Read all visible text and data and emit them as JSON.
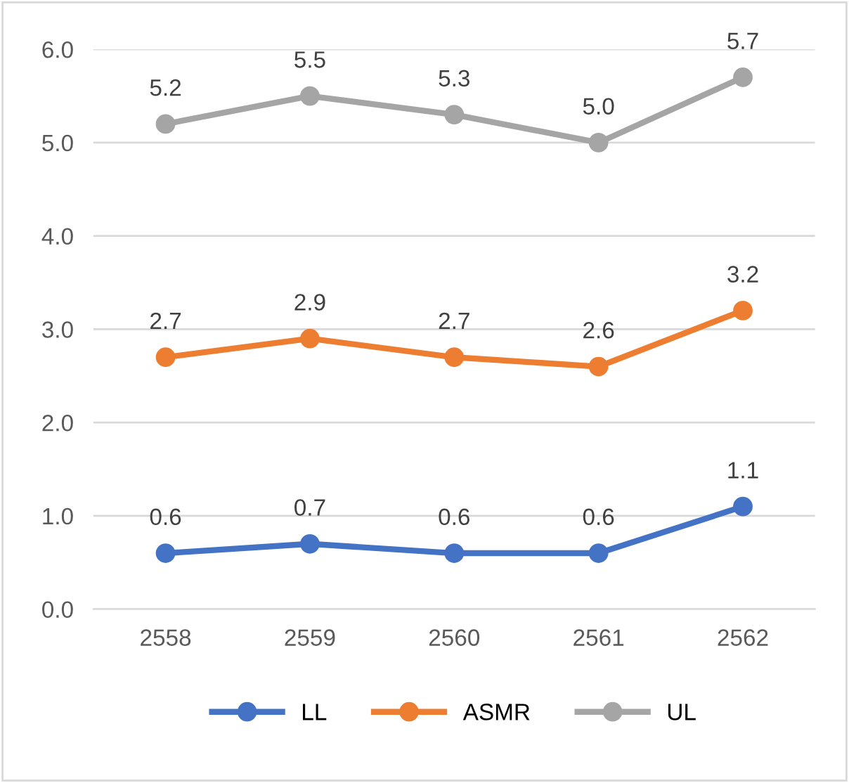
{
  "chart_data": {
    "type": "line",
    "categories": [
      "2558",
      "2559",
      "2560",
      "2561",
      "2562"
    ],
    "series": [
      {
        "name": "LL",
        "color": "#4472c4",
        "values": [
          0.6,
          0.7,
          0.6,
          0.6,
          1.1
        ],
        "value_labels": [
          "0.6",
          "0.7",
          "0.6",
          "0.6",
          "1.1"
        ]
      },
      {
        "name": "ASMR",
        "color": "#ed7d31",
        "values": [
          2.7,
          2.9,
          2.7,
          2.6,
          3.2
        ],
        "value_labels": [
          "2.7",
          "2.9",
          "2.7",
          "2.6",
          "3.2"
        ]
      },
      {
        "name": "UL",
        "color": "#a5a5a5",
        "values": [
          5.2,
          5.5,
          5.3,
          5.0,
          5.7
        ],
        "value_labels": [
          "5.2",
          "5.5",
          "5.3",
          "5.0",
          "5.7"
        ]
      }
    ],
    "ylim": [
      0,
      6
    ],
    "yticks": [
      {
        "value": 0,
        "label": "0.0"
      },
      {
        "value": 1,
        "label": "1.0"
      },
      {
        "value": 2,
        "label": "2.0"
      },
      {
        "value": 3,
        "label": "3.0"
      },
      {
        "value": 4,
        "label": "4.0"
      },
      {
        "value": 5,
        "label": "5.0"
      },
      {
        "value": 6,
        "label": "6.0"
      }
    ],
    "grid": "y",
    "legend": "bottom",
    "marker": "circle",
    "line_style": "solid"
  }
}
